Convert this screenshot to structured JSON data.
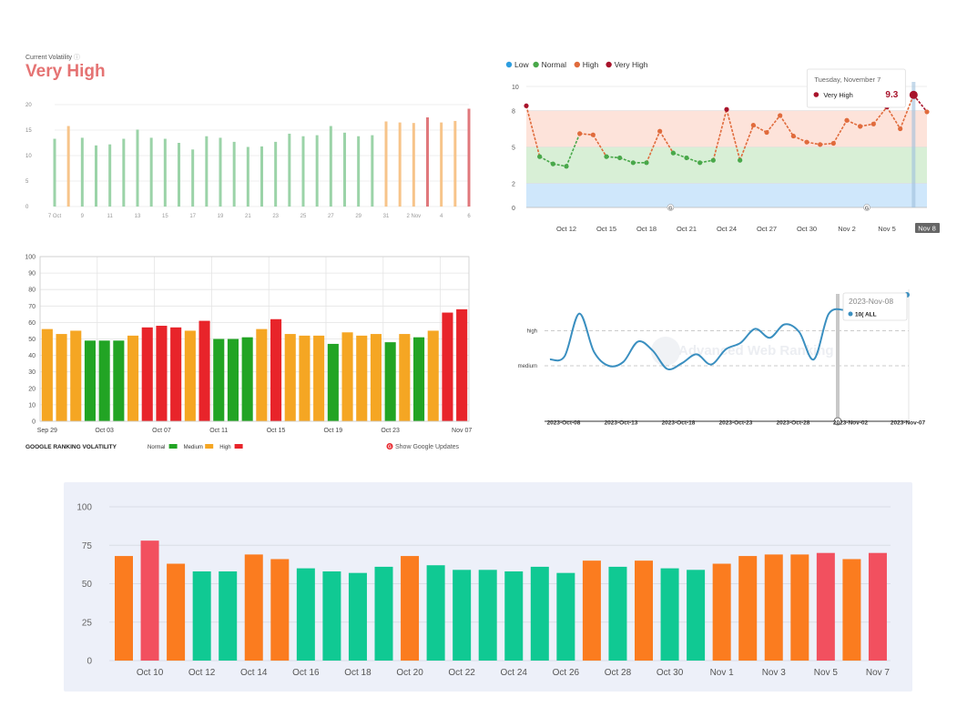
{
  "chart_data": [
    {
      "type": "bar",
      "header_label": "Current Volatility",
      "header_value": "Very High",
      "ylim": [
        0,
        20
      ],
      "yticks": [
        "20",
        "15",
        "10",
        "5",
        "0"
      ],
      "xticks": [
        "7 Oct",
        "9",
        "11",
        "13",
        "15",
        "17",
        "19",
        "21",
        "23",
        "25",
        "27",
        "29",
        "31",
        "2 Nov",
        "4",
        "6"
      ],
      "values": [
        13.3,
        15.8,
        13.5,
        12.0,
        12.2,
        13.3,
        15.1,
        13.5,
        13.3,
        12.5,
        11.2,
        13.8,
        13.5,
        12.7,
        11.7,
        11.8,
        12.7,
        14.3,
        13.8,
        14.0,
        15.8,
        14.5,
        13.8,
        14.0,
        16.7,
        16.5,
        16.4,
        17.5,
        16.5,
        16.8,
        19.2
      ],
      "levels": [
        "normal",
        "medium",
        "normal",
        "normal",
        "normal",
        "normal",
        "normal",
        "normal",
        "normal",
        "normal",
        "normal",
        "normal",
        "normal",
        "normal",
        "normal",
        "normal",
        "normal",
        "normal",
        "normal",
        "normal",
        "normal",
        "normal",
        "normal",
        "normal",
        "medium",
        "medium",
        "medium",
        "high",
        "medium",
        "medium",
        "high"
      ],
      "colors": {
        "normal": "#9bd3a8",
        "medium": "#f7c48a",
        "high": "#e0787c",
        "header": "#e57373"
      }
    },
    {
      "type": "line",
      "legend": [
        {
          "name": "Low",
          "color": "#2d9ee0"
        },
        {
          "name": "Normal",
          "color": "#49a84a"
        },
        {
          "name": "High",
          "color": "#e06b3c"
        },
        {
          "name": "Very High",
          "color": "#a8132b"
        }
      ],
      "ylim": [
        0,
        10
      ],
      "yticks": [
        "10",
        "8",
        "5",
        "2",
        "0"
      ],
      "xticks": [
        "Oct 12",
        "Oct 15",
        "Oct 18",
        "Oct 21",
        "Oct 24",
        "Oct 27",
        "Oct 30",
        "Nov 2",
        "Nov 5",
        "Nov 8"
      ],
      "x_start": "Oct 9",
      "values": [
        8.4,
        4.2,
        3.6,
        3.4,
        6.1,
        6.0,
        4.2,
        4.1,
        3.7,
        3.7,
        6.3,
        4.5,
        4.1,
        3.7,
        3.9,
        8.1,
        3.9,
        6.8,
        6.2,
        7.6,
        5.9,
        5.4,
        5.2,
        5.3,
        7.2,
        6.7,
        6.9,
        8.3,
        6.5,
        9.3,
        7.9
      ],
      "tooltip_date": "Tuesday, November 7",
      "tooltip_label": "Very High",
      "tooltip_value": "9.3",
      "google_markers": [
        "G",
        "G"
      ]
    },
    {
      "type": "bar",
      "title": "GOOGLE RANKING VOLATILITY",
      "ylim": [
        0,
        100
      ],
      "yticks": [
        "100",
        "90",
        "80",
        "70",
        "60",
        "50",
        "40",
        "30",
        "20",
        "10",
        "0"
      ],
      "xticks": [
        "Sep 29",
        "Oct 03",
        "Oct 07",
        "Oct 11",
        "Oct 15",
        "Oct 19",
        "Oct 23",
        "Nov 07"
      ],
      "values": [
        56,
        53,
        55,
        49,
        49,
        49,
        52,
        57,
        58,
        57,
        55,
        61,
        50,
        50,
        51,
        56,
        62,
        53,
        52,
        52,
        47,
        54,
        52,
        53,
        48,
        53,
        51,
        55,
        66,
        68
      ],
      "levels": [
        "medium",
        "medium",
        "medium",
        "normal",
        "normal",
        "normal",
        "medium",
        "high",
        "high",
        "high",
        "medium",
        "high",
        "normal",
        "normal",
        "normal",
        "medium",
        "high",
        "medium",
        "medium",
        "medium",
        "normal",
        "medium",
        "medium",
        "medium",
        "normal",
        "medium",
        "normal",
        "medium",
        "high",
        "high"
      ],
      "legend": [
        {
          "name": "Normal",
          "color": "#22a424"
        },
        {
          "name": "Medium",
          "color": "#f5a623"
        },
        {
          "name": "High",
          "color": "#e8242a"
        }
      ],
      "updates_link": "Show Google Updates"
    },
    {
      "type": "line",
      "levels": [
        "high",
        "medium"
      ],
      "xticks": [
        "2023-Oct-08",
        "2023-Oct-13",
        "2023-Oct-18",
        "2023-Oct-23",
        "2023-Oct-28",
        "2023-Nov-02",
        "2023-Nov-07"
      ],
      "x_start": "2023-Oct-06",
      "values": [
        0.1,
        0.15,
        0.82,
        0.22,
        0.0,
        0.06,
        0.38,
        0.24,
        -0.05,
        0.04,
        0.18,
        0.02,
        0.26,
        0.36,
        0.58,
        0.44,
        0.65,
        0.53,
        0.1,
        0.81,
        0.88
      ],
      "level_values": {
        "high": 0.55,
        "medium": 0.0
      },
      "tooltip_date": "2023-Nov-08",
      "tooltip_series": "10( ALL",
      "watermark": "Advanced Web Ranking",
      "line_color": "#3a8fc0"
    },
    {
      "type": "bar",
      "ylim": [
        0,
        100
      ],
      "yticks": [
        "100",
        "75",
        "50",
        "25",
        "0"
      ],
      "xticks": [
        "Oct 10",
        "Oct 12",
        "Oct 14",
        "Oct 16",
        "Oct 18",
        "Oct 20",
        "Oct 22",
        "Oct 24",
        "Oct 26",
        "Oct 28",
        "Oct 30",
        "Nov 1",
        "Nov 3",
        "Nov 5",
        "Nov 7"
      ],
      "x_start": "Oct 9",
      "values": [
        68,
        78,
        63,
        58,
        58,
        69,
        66,
        60,
        58,
        57,
        61,
        68,
        62,
        59,
        59,
        58,
        61,
        57,
        65,
        61,
        65,
        60,
        59,
        63,
        68,
        69,
        69,
        70,
        66,
        70
      ],
      "levels": [
        "medium",
        "high",
        "medium",
        "normal",
        "normal",
        "medium",
        "medium",
        "normal",
        "normal",
        "normal",
        "normal",
        "medium",
        "normal",
        "normal",
        "normal",
        "normal",
        "normal",
        "normal",
        "medium",
        "normal",
        "medium",
        "normal",
        "normal",
        "medium",
        "medium",
        "medium",
        "medium",
        "high",
        "medium",
        "high"
      ],
      "colors": {
        "normal": "#10c993",
        "medium": "#fb7c1f",
        "high": "#f2505f"
      }
    }
  ]
}
